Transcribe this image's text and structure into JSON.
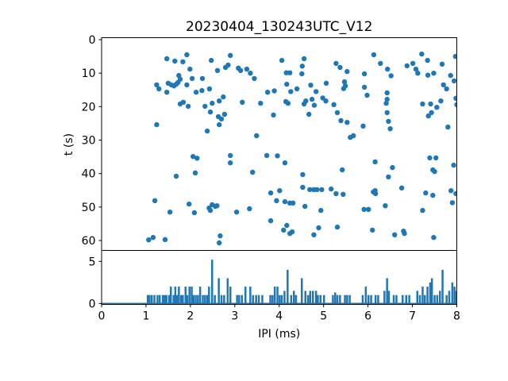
{
  "figure": {
    "title": "20230404_130243UTC_V12",
    "background_color": "#ffffff",
    "accent_color": "#1f77b4"
  },
  "chart_data": [
    {
      "type": "scatter",
      "title": "20230404_130243UTC_V12",
      "xlabel": "",
      "ylabel": "t (s)",
      "xlim": [
        0,
        8
      ],
      "ylim_top_to_bottom": [
        -0.59,
        62.96
      ],
      "y_axis_inverted": true,
      "yticks": [
        0,
        10,
        20,
        30,
        40,
        50,
        60
      ],
      "xticklabels_visible": false,
      "grid": false,
      "legend": "none",
      "marker_color": "#1f77b4",
      "points": [
        [
          1.47,
          5.7
        ],
        [
          1.65,
          6.4
        ],
        [
          1.83,
          6.6
        ],
        [
          1.92,
          4.5
        ],
        [
          1.99,
          8.8
        ],
        [
          2.47,
          6.2
        ],
        [
          2.61,
          9.2
        ],
        [
          2.79,
          8.3
        ],
        [
          2.85,
          7.6
        ],
        [
          2.9,
          4.7
        ],
        [
          3.08,
          8.5
        ],
        [
          3.13,
          9.2
        ],
        [
          3.27,
          8.8
        ],
        [
          3.35,
          10.0
        ],
        [
          3.44,
          11.6
        ],
        [
          1.74,
          10.7
        ],
        [
          1.77,
          11.8
        ],
        [
          2.04,
          11.6
        ],
        [
          2.27,
          11.6
        ],
        [
          1.24,
          13.5
        ],
        [
          1.29,
          14.7
        ],
        [
          1.47,
          15.7
        ],
        [
          1.5,
          13.0
        ],
        [
          1.57,
          13.5
        ],
        [
          1.63,
          13.8
        ],
        [
          1.68,
          13.3
        ],
        [
          1.72,
          12.8
        ],
        [
          1.92,
          13.5
        ],
        [
          2.13,
          15.7
        ],
        [
          2.26,
          15.2
        ],
        [
          2.43,
          14.7
        ],
        [
          3.74,
          15.7
        ],
        [
          3.89,
          15.3
        ],
        [
          4.06,
          6.2
        ],
        [
          4.56,
          5.7
        ],
        [
          4.52,
          7.9
        ],
        [
          4.16,
          9.9
        ],
        [
          4.24,
          9.9
        ],
        [
          4.51,
          10.2
        ],
        [
          6.13,
          4.5
        ],
        [
          6.28,
          7.1
        ],
        [
          6.44,
          8.8
        ],
        [
          6.52,
          10.8
        ],
        [
          6.88,
          7.8
        ],
        [
          7.01,
          7.1
        ],
        [
          7.08,
          8.8
        ],
        [
          7.12,
          10.0
        ],
        [
          7.21,
          4.3
        ],
        [
          7.34,
          6.2
        ],
        [
          7.48,
          10.0
        ],
        [
          7.67,
          7.3
        ],
        [
          7.86,
          10.7
        ],
        [
          7.94,
          12.3
        ],
        [
          7.97,
          5.0
        ],
        [
          5.28,
          7.1
        ],
        [
          5.37,
          8.3
        ],
        [
          5.53,
          9.5
        ],
        [
          5.92,
          10.2
        ],
        [
          4.17,
          13.3
        ],
        [
          4.4,
          14.7
        ],
        [
          4.26,
          15.5
        ],
        [
          4.71,
          13.6
        ],
        [
          4.83,
          15.5
        ],
        [
          5.06,
          13.0
        ],
        [
          5.47,
          12.6
        ],
        [
          5.49,
          13.8
        ],
        [
          5.45,
          14.6
        ],
        [
          5.92,
          14.2
        ],
        [
          5.98,
          16.6
        ],
        [
          7.7,
          13.5
        ],
        [
          7.77,
          14.7
        ],
        [
          7.35,
          10.6
        ],
        [
          1.77,
          19.2
        ],
        [
          1.84,
          18.7
        ],
        [
          1.95,
          19.9
        ],
        [
          2.33,
          19.9
        ],
        [
          2.45,
          21.6
        ],
        [
          2.49,
          19.0
        ],
        [
          2.65,
          18.3
        ],
        [
          2.74,
          17.1
        ],
        [
          3.17,
          18.7
        ],
        [
          3.58,
          19.0
        ],
        [
          2.63,
          23.0
        ],
        [
          2.7,
          23.7
        ],
        [
          2.77,
          22.3
        ],
        [
          3.87,
          22.5
        ],
        [
          1.24,
          25.4
        ],
        [
          2.65,
          25.4
        ],
        [
          2.38,
          27.3
        ],
        [
          3.49,
          28.7
        ],
        [
          4.15,
          18.5
        ],
        [
          4.2,
          19.0
        ],
        [
          4.56,
          19.2
        ],
        [
          4.6,
          18.3
        ],
        [
          4.74,
          17.8
        ],
        [
          4.79,
          19.6
        ],
        [
          4.67,
          22.3
        ],
        [
          4.98,
          17.4
        ],
        [
          5.05,
          18.3
        ],
        [
          5.23,
          19.4
        ],
        [
          5.31,
          21.8
        ],
        [
          5.39,
          24.2
        ],
        [
          5.53,
          24.7
        ],
        [
          5.89,
          25.8
        ],
        [
          5.6,
          29.2
        ],
        [
          5.67,
          28.7
        ],
        [
          6.43,
          15.9
        ],
        [
          6.43,
          17.8
        ],
        [
          6.41,
          19.0
        ],
        [
          6.43,
          21.8
        ],
        [
          6.46,
          24.4
        ],
        [
          6.5,
          26.6
        ],
        [
          7.23,
          19.2
        ],
        [
          7.41,
          19.2
        ],
        [
          7.55,
          20.2
        ],
        [
          7.64,
          18.3
        ],
        [
          7.98,
          17.5
        ],
        [
          8.0,
          19.4
        ],
        [
          7.8,
          26.1
        ],
        [
          7.36,
          22.8
        ],
        [
          7.43,
          21.8
        ],
        [
          2.06,
          34.9
        ],
        [
          2.15,
          35.4
        ],
        [
          2.9,
          34.6
        ],
        [
          2.9,
          36.8
        ],
        [
          3.72,
          34.6
        ],
        [
          3.96,
          34.7
        ],
        [
          1.68,
          40.8
        ],
        [
          2.11,
          39.8
        ],
        [
          3.4,
          39.6
        ],
        [
          4.13,
          36.8
        ],
        [
          4.53,
          40.3
        ],
        [
          5.42,
          38.9
        ],
        [
          6.16,
          36.5
        ],
        [
          6.55,
          38.2
        ],
        [
          6.46,
          41.0
        ],
        [
          7.39,
          35.3
        ],
        [
          7.53,
          35.3
        ],
        [
          7.93,
          37.5
        ],
        [
          7.46,
          38.9
        ],
        [
          7.5,
          39.4
        ],
        [
          4.01,
          45.1
        ],
        [
          4.53,
          44.1
        ],
        [
          4.69,
          44.8
        ],
        [
          4.78,
          44.8
        ],
        [
          4.85,
          44.8
        ],
        [
          4.96,
          44.8
        ],
        [
          5.17,
          44.6
        ],
        [
          5.28,
          46.0
        ],
        [
          5.44,
          46.2
        ],
        [
          6.12,
          45.5
        ],
        [
          6.16,
          45.1
        ],
        [
          6.17,
          46.0
        ],
        [
          6.76,
          44.3
        ],
        [
          7.3,
          45.8
        ],
        [
          7.46,
          46.5
        ],
        [
          7.87,
          45.1
        ],
        [
          7.98,
          46.0
        ],
        [
          4.13,
          48.4
        ],
        [
          4.24,
          48.8
        ],
        [
          4.31,
          48.8
        ],
        [
          4.58,
          49.8
        ],
        [
          4.94,
          51.0
        ],
        [
          5.91,
          50.7
        ],
        [
          6.01,
          50.7
        ],
        [
          6.39,
          49.6
        ],
        [
          7.23,
          51.0
        ],
        [
          7.9,
          48.7
        ],
        [
          1.2,
          48.1
        ],
        [
          1.54,
          51.5
        ],
        [
          1.97,
          49.1
        ],
        [
          2.09,
          51.7
        ],
        [
          2.42,
          50.3
        ],
        [
          2.49,
          49.3
        ],
        [
          2.56,
          49.8
        ],
        [
          2.6,
          49.6
        ],
        [
          2.45,
          51.0
        ],
        [
          3.04,
          51.5
        ],
        [
          3.33,
          50.5
        ],
        [
          3.81,
          45.8
        ],
        [
          3.94,
          48.1
        ],
        [
          3.81,
          54.1
        ],
        [
          4.1,
          56.9
        ],
        [
          1.06,
          59.8
        ],
        [
          1.16,
          59.1
        ],
        [
          1.43,
          59.7
        ],
        [
          2.67,
          58.6
        ],
        [
          2.65,
          60.7
        ],
        [
          4.17,
          55.5
        ],
        [
          4.29,
          57.4
        ],
        [
          4.24,
          57.9
        ],
        [
          4.78,
          58.3
        ],
        [
          4.89,
          56.2
        ],
        [
          5.31,
          56.0
        ],
        [
          6.1,
          56.9
        ],
        [
          6.6,
          58.3
        ],
        [
          6.8,
          57.2
        ],
        [
          6.82,
          57.9
        ],
        [
          7.48,
          59.1
        ]
      ]
    },
    {
      "type": "bar",
      "title": "",
      "xlabel": "IPI (ms)",
      "ylabel": "",
      "xlim": [
        0,
        8
      ],
      "ylim_bottom_to_top": [
        -0.11,
        6.3
      ],
      "yticks": [
        0,
        5
      ],
      "xticks": [
        0,
        1,
        2,
        3,
        4,
        5,
        6,
        7,
        8
      ],
      "grid": false,
      "legend": "none",
      "bar_color": "#1f77b4",
      "bar_width_ms": 0.045,
      "baseline_value": 0,
      "spikes": [
        [
          1.04,
          1
        ],
        [
          1.08,
          1
        ],
        [
          1.13,
          1
        ],
        [
          1.19,
          1
        ],
        [
          1.26,
          1
        ],
        [
          1.31,
          1
        ],
        [
          1.38,
          1
        ],
        [
          1.42,
          1
        ],
        [
          1.46,
          1
        ],
        [
          1.52,
          1
        ],
        [
          1.56,
          2
        ],
        [
          1.62,
          1
        ],
        [
          1.66,
          2
        ],
        [
          1.7,
          1
        ],
        [
          1.74,
          2
        ],
        [
          1.79,
          1
        ],
        [
          1.83,
          1
        ],
        [
          1.89,
          2
        ],
        [
          1.93,
          1
        ],
        [
          1.98,
          2
        ],
        [
          2.03,
          2
        ],
        [
          2.07,
          1
        ],
        [
          2.12,
          1
        ],
        [
          2.17,
          1
        ],
        [
          2.22,
          2
        ],
        [
          2.28,
          1
        ],
        [
          2.33,
          1
        ],
        [
          2.38,
          1
        ],
        [
          2.42,
          2
        ],
        [
          2.49,
          5.2
        ],
        [
          2.55,
          1
        ],
        [
          2.64,
          3
        ],
        [
          2.7,
          1
        ],
        [
          2.76,
          1
        ],
        [
          2.84,
          3
        ],
        [
          2.9,
          2
        ],
        [
          3.05,
          1
        ],
        [
          3.1,
          1
        ],
        [
          3.16,
          1
        ],
        [
          3.24,
          2
        ],
        [
          3.35,
          2
        ],
        [
          3.41,
          1
        ],
        [
          3.48,
          1
        ],
        [
          3.54,
          1
        ],
        [
          3.62,
          1
        ],
        [
          3.8,
          1
        ],
        [
          3.85,
          1
        ],
        [
          3.9,
          2
        ],
        [
          3.96,
          2
        ],
        [
          4.01,
          1
        ],
        [
          4.06,
          1
        ],
        [
          4.12,
          1.5
        ],
        [
          4.19,
          4
        ],
        [
          4.27,
          1
        ],
        [
          4.33,
          1.5
        ],
        [
          4.38,
          1
        ],
        [
          4.51,
          3
        ],
        [
          4.59,
          1.5
        ],
        [
          4.65,
          1
        ],
        [
          4.7,
          1.5
        ],
        [
          4.76,
          1.5
        ],
        [
          4.83,
          1.5
        ],
        [
          4.87,
          1
        ],
        [
          4.93,
          1
        ],
        [
          5.01,
          1
        ],
        [
          5.21,
          1
        ],
        [
          5.26,
          1.3
        ],
        [
          5.31,
          1
        ],
        [
          5.37,
          1
        ],
        [
          5.48,
          1
        ],
        [
          5.53,
          1
        ],
        [
          5.59,
          1
        ],
        [
          5.88,
          1
        ],
        [
          5.95,
          2
        ],
        [
          6.01,
          1
        ],
        [
          6.07,
          1
        ],
        [
          6.17,
          1
        ],
        [
          6.23,
          1
        ],
        [
          6.37,
          1.5
        ],
        [
          6.43,
          3
        ],
        [
          6.47,
          1.5
        ],
        [
          6.58,
          1
        ],
        [
          6.64,
          1
        ],
        [
          6.78,
          1
        ],
        [
          6.86,
          1
        ],
        [
          6.93,
          1
        ],
        [
          7.11,
          1.5
        ],
        [
          7.17,
          1
        ],
        [
          7.23,
          2
        ],
        [
          7.28,
          1
        ],
        [
          7.34,
          2
        ],
        [
          7.4,
          2.5
        ],
        [
          7.44,
          3
        ],
        [
          7.5,
          1
        ],
        [
          7.56,
          1
        ],
        [
          7.62,
          1.5
        ],
        [
          7.68,
          4
        ],
        [
          7.77,
          1
        ],
        [
          7.83,
          1.5
        ],
        [
          7.9,
          2.5
        ],
        [
          7.95,
          2
        ],
        [
          7.99,
          1.5
        ]
      ]
    }
  ]
}
